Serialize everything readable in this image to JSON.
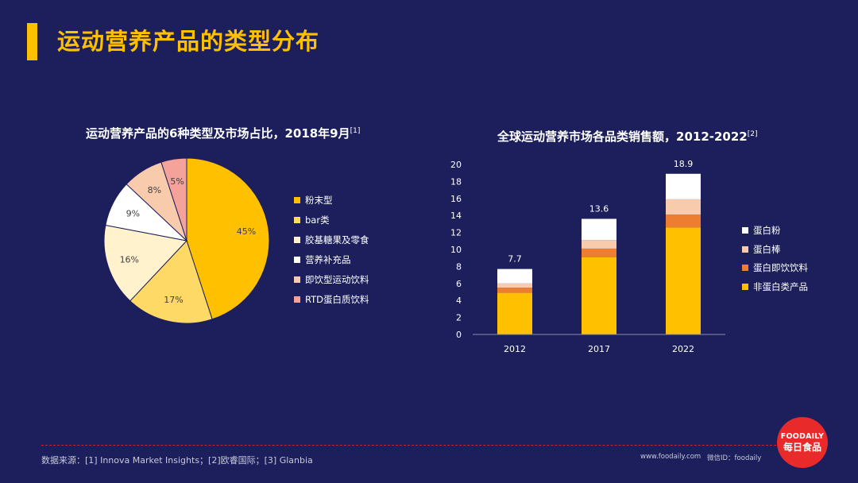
{
  "page": {
    "title": "运动营养产品的类型分布"
  },
  "footer": {
    "sources": "数据来源：[1] Innova Market Insights；[2]欧睿国际；[3] Glanbia",
    "url": "www.foodaily.com",
    "wechat_id": "微信ID：foodaily",
    "logo_en": "FOODAILY",
    "logo_cn": "每日食品"
  },
  "colors": {
    "background": "#1c1f5c",
    "accent": "#ffc000",
    "divider": "#c0282d",
    "logo": "#e82a2b"
  },
  "chart_data": [
    {
      "type": "pie",
      "title": "运动营养产品的6种类型及市场占比，2018年9月",
      "title_ref": "[1]",
      "categories": [
        "粉末型",
        "bar类",
        "胶基糖果及零食",
        "营养补充品",
        "即饮型运动饮料",
        "RTD蛋白质饮料"
      ],
      "values": [
        45,
        17,
        16,
        9,
        8,
        5
      ],
      "labels": [
        "45%",
        "17%",
        "16%",
        "9%",
        "8%",
        "5%"
      ],
      "colors": [
        "#ffc000",
        "#ffd966",
        "#fff2cc",
        "#ffffff",
        "#f8cbad",
        "#f4a29a"
      ],
      "legend_position": "right"
    },
    {
      "type": "bar",
      "stacked": true,
      "title": "全球运动营养市场各品类销售额，2012-2022",
      "title_ref": "[2]",
      "categories": [
        "2012",
        "2017",
        "2022"
      ],
      "series": [
        {
          "name": "非蛋白类产品",
          "values": [
            4.9,
            9.1,
            12.6
          ],
          "color": "#ffc000"
        },
        {
          "name": "蛋白即饮饮料",
          "values": [
            0.6,
            1.0,
            1.5
          ],
          "color": "#ed7d31"
        },
        {
          "name": "蛋白棒",
          "values": [
            0.5,
            1.0,
            1.8
          ],
          "color": "#f8cbad"
        },
        {
          "name": "蛋白粉",
          "values": [
            1.7,
            2.5,
            3.0
          ],
          "color": "#ffffff"
        }
      ],
      "totals": [
        "7.7",
        "13.6",
        "18.9"
      ],
      "yticks": [
        "0",
        "2",
        "4",
        "6",
        "8",
        "10",
        "12",
        "14",
        "16",
        "18",
        "20"
      ],
      "ylim": [
        0,
        20
      ],
      "grid": false,
      "legend_position": "right",
      "legend_order": [
        "蛋白粉",
        "蛋白棒",
        "蛋白即饮饮料",
        "非蛋白类产品"
      ]
    }
  ]
}
